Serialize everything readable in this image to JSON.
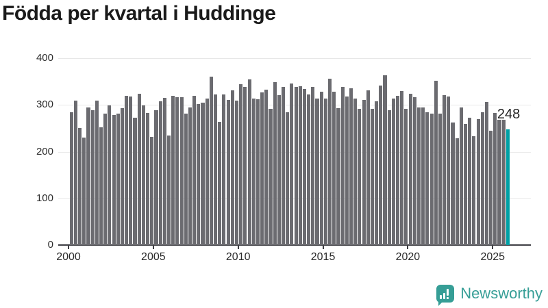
{
  "title": "Födda per kvartal i Huddinge",
  "chart_data": {
    "type": "bar",
    "title": "Födda per kvartal i Huddinge",
    "x_unit": "quarter",
    "categories": [
      "2000-K1",
      "2000-K2",
      "2000-K3",
      "2000-K4",
      "2001-K1",
      "2001-K2",
      "2001-K3",
      "2001-K4",
      "2002-K1",
      "2002-K2",
      "2002-K3",
      "2002-K4",
      "2003-K1",
      "2003-K2",
      "2003-K3",
      "2003-K4",
      "2004-K1",
      "2004-K2",
      "2004-K3",
      "2004-K4",
      "2005-K1",
      "2005-K2",
      "2005-K3",
      "2005-K4",
      "2006-K1",
      "2006-K2",
      "2006-K3",
      "2006-K4",
      "2007-K1",
      "2007-K2",
      "2007-K3",
      "2007-K4",
      "2008-K1",
      "2008-K2",
      "2008-K3",
      "2008-K4",
      "2009-K1",
      "2009-K2",
      "2009-K3",
      "2009-K4",
      "2010-K1",
      "2010-K2",
      "2010-K3",
      "2010-K4",
      "2011-K1",
      "2011-K2",
      "2011-K3",
      "2011-K4",
      "2012-K1",
      "2012-K2",
      "2012-K3",
      "2012-K4",
      "2013-K1",
      "2013-K2",
      "2013-K3",
      "2013-K4",
      "2014-K1",
      "2014-K2",
      "2014-K3",
      "2014-K4",
      "2015-K1",
      "2015-K2",
      "2015-K3",
      "2015-K4",
      "2016-K1",
      "2016-K2",
      "2016-K3",
      "2016-K4",
      "2017-K1",
      "2017-K2",
      "2017-K3",
      "2017-K4",
      "2018-K1",
      "2018-K2",
      "2018-K3",
      "2018-K4",
      "2019-K1",
      "2019-K2",
      "2019-K3",
      "2019-K4",
      "2020-K1",
      "2020-K2",
      "2020-K3",
      "2020-K4",
      "2021-K1",
      "2021-K2",
      "2021-K3",
      "2021-K4",
      "2022-K1",
      "2022-K2",
      "2022-K3",
      "2022-K4",
      "2023-K1",
      "2023-K2",
      "2023-K3",
      "2023-K4",
      "2024-K1",
      "2024-K2",
      "2024-K3",
      "2024-K4",
      "2025-K1",
      "2025-K2",
      "2025-K3",
      "2025-K4"
    ],
    "values": [
      284,
      309,
      251,
      230,
      294,
      289,
      309,
      252,
      282,
      299,
      278,
      282,
      293,
      320,
      318,
      273,
      324,
      299,
      283,
      232,
      289,
      307,
      315,
      235,
      320,
      317,
      317,
      281,
      294,
      320,
      302,
      305,
      314,
      361,
      323,
      264,
      322,
      311,
      331,
      309,
      344,
      338,
      354,
      313,
      312,
      327,
      333,
      291,
      349,
      321,
      338,
      285,
      346,
      339,
      340,
      334,
      323,
      338,
      314,
      328,
      314,
      356,
      328,
      293,
      338,
      318,
      336,
      314,
      291,
      311,
      331,
      291,
      307,
      342,
      364,
      289,
      314,
      319,
      329,
      291,
      324,
      317,
      295,
      295,
      284,
      281,
      352,
      281,
      321,
      318,
      263,
      229,
      295,
      260,
      272,
      233,
      269,
      285,
      306,
      245,
      283,
      268,
      268,
      248
    ],
    "x_tick_labels": [
      "2000",
      "2005",
      "2010",
      "2015",
      "2020",
      "2025"
    ],
    "y_tick_labels": [
      "0",
      "100",
      "200",
      "300",
      "400"
    ],
    "ylim": [
      0,
      400
    ],
    "grid": "horizontal",
    "legend": "none",
    "bar_color": "#6b6b70",
    "highlight": {
      "index": 103,
      "label": "248",
      "color": "#00a0a5"
    }
  },
  "branding": {
    "name": "Newsworthy",
    "color": "#369e96",
    "icon": "newsworthy-bar-chart-bubble-icon"
  },
  "colors": {
    "background": "#ffffff",
    "title": "#1a1a1a",
    "axis_text": "#2b2b2b",
    "gridline": "#e7e7e7",
    "axis_line": "#3f3f44",
    "bar": "#6b6b70",
    "highlight": "#00a0a5",
    "brand": "#369e96"
  }
}
